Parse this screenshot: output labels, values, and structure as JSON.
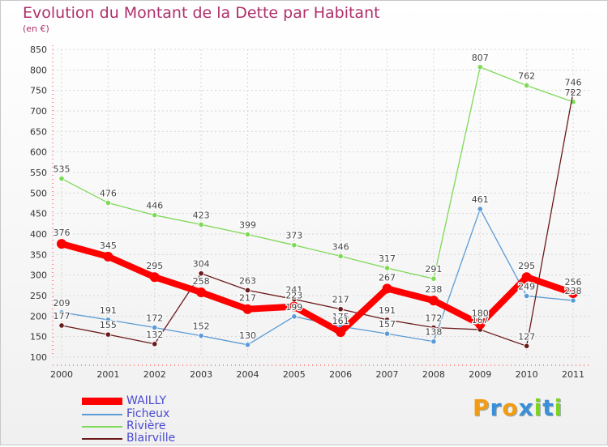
{
  "chart_data": {
    "type": "line",
    "title": "Evolution du Montant de la Dette par Habitant",
    "subtitle": "(en €)",
    "x": [
      "2000",
      "2001",
      "2002",
      "2003",
      "2004",
      "2005",
      "2006",
      "2007",
      "2008",
      "2009",
      "2010",
      "2011"
    ],
    "ylim": [
      100,
      850
    ],
    "yticks": [
      100,
      150,
      200,
      250,
      300,
      350,
      400,
      450,
      500,
      550,
      600,
      650,
      700,
      750,
      800,
      850
    ],
    "grid": true,
    "legend_position": "bottom-left",
    "series": [
      {
        "name": "WAILLY",
        "color": "#ff0000",
        "values": [
          376,
          345,
          295,
          258,
          217,
          223,
          161,
          267,
          238,
          180,
          295,
          256
        ]
      },
      {
        "name": "Ficheux",
        "color": "#5b9bd5",
        "values": [
          209,
          191,
          172,
          152,
          130,
          199,
          175,
          157,
          138,
          461,
          249,
          238
        ]
      },
      {
        "name": "Rivière",
        "color": "#7ed957",
        "values": [
          535,
          476,
          446,
          423,
          399,
          373,
          346,
          317,
          291,
          807,
          762,
          722
        ]
      },
      {
        "name": "Blairville",
        "color": "#6b1a1a",
        "values": [
          177,
          155,
          132,
          304,
          263,
          241,
          217,
          191,
          172,
          167,
          127,
          746
        ]
      }
    ]
  },
  "logo": {
    "letters": [
      "P",
      "r",
      "o",
      "x",
      "i",
      "t",
      "i"
    ],
    "colors": [
      "#f39c12",
      "#3a8fd9",
      "#f39c12",
      "#3a8fd9",
      "#7ed321",
      "#3a8fd9",
      "#7ed321"
    ]
  }
}
